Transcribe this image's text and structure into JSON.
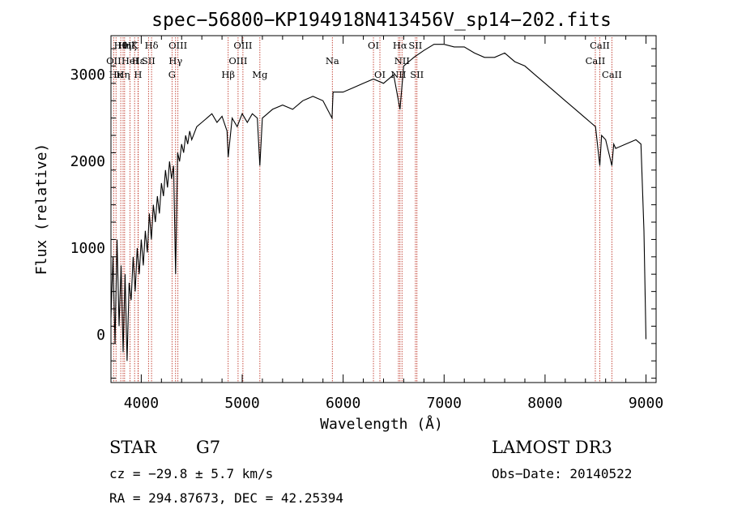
{
  "chart_data": {
    "type": "line",
    "title": "spec−56800−KP194918N413456V_sp14−202.fits",
    "xlabel": "Wavelength (Å)",
    "ylabel": "Flux (relative)",
    "xlim": [
      3700,
      9100
    ],
    "ylim": [
      -550,
      3450
    ],
    "x_ticks": [
      4000,
      5000,
      6000,
      7000,
      8000,
      9000
    ],
    "y_ticks": [
      0,
      1000,
      2000,
      3000
    ],
    "series": [
      {
        "name": "spectrum",
        "x": [
          3700,
          3720,
          3740,
          3760,
          3780,
          3800,
          3820,
          3840,
          3860,
          3880,
          3900,
          3920,
          3940,
          3960,
          3980,
          4000,
          4020,
          4040,
          4060,
          4080,
          4100,
          4120,
          4140,
          4160,
          4180,
          4200,
          4220,
          4240,
          4260,
          4280,
          4300,
          4320,
          4340,
          4360,
          4380,
          4400,
          4420,
          4440,
          4460,
          4480,
          4500,
          4550,
          4600,
          4650,
          4700,
          4750,
          4800,
          4850,
          4861,
          4900,
          4950,
          5000,
          5050,
          5100,
          5150,
          5175,
          5200,
          5250,
          5300,
          5400,
          5500,
          5600,
          5700,
          5800,
          5890,
          5900,
          6000,
          6100,
          6200,
          6300,
          6400,
          6500,
          6563,
          6600,
          6700,
          6800,
          6900,
          7000,
          7100,
          7200,
          7300,
          7400,
          7500,
          7600,
          7700,
          7800,
          7900,
          8000,
          8100,
          8200,
          8300,
          8400,
          8450,
          8500,
          8542,
          8560,
          8600,
          8662,
          8680,
          8700,
          8800,
          8900,
          8950,
          8980,
          9000
        ],
        "y": [
          200,
          900,
          -100,
          1100,
          100,
          800,
          -200,
          700,
          -300,
          600,
          400,
          900,
          500,
          1000,
          700,
          1100,
          800,
          1200,
          950,
          1400,
          1100,
          1500,
          1300,
          1600,
          1400,
          1750,
          1600,
          1900,
          1700,
          2000,
          1800,
          1950,
          700,
          2100,
          2000,
          2200,
          2100,
          2300,
          2200,
          2350,
          2250,
          2400,
          2450,
          2500,
          2550,
          2450,
          2520,
          2350,
          2050,
          2500,
          2400,
          2550,
          2450,
          2550,
          2500,
          1950,
          2500,
          2550,
          2600,
          2650,
          2600,
          2700,
          2750,
          2700,
          2500,
          2800,
          2800,
          2850,
          2900,
          2950,
          2900,
          3000,
          2600,
          3100,
          3200,
          3280,
          3350,
          3350,
          3320,
          3320,
          3250,
          3200,
          3200,
          3250,
          3150,
          3100,
          3000,
          2900,
          2800,
          2700,
          2600,
          2500,
          2450,
          2400,
          1950,
          2300,
          2250,
          1950,
          2200,
          2150,
          2200,
          2250,
          2200,
          1200,
          -50
        ]
      }
    ],
    "lines_top": [
      {
        "x": 3797,
        "label": "Hθ"
      },
      {
        "x": 3835,
        "label": "Hη"
      },
      {
        "x": 3889,
        "label": "Hζ"
      },
      {
        "x": 3934,
        "label": "K"
      },
      {
        "x": 4102,
        "label": "Hδ"
      },
      {
        "x": 4363,
        "label": "OIII"
      },
      {
        "x": 5007,
        "label": "OIII"
      },
      {
        "x": 6300,
        "label": "OI"
      },
      {
        "x": 6563,
        "label": "Hα"
      },
      {
        "x": 6716,
        "label": "SII"
      },
      {
        "x": 8542,
        "label": "CaII"
      }
    ],
    "lines_mid": [
      {
        "x": 3727,
        "label": "OII"
      },
      {
        "x": 3970,
        "label": "Hε"
      },
      {
        "x": 3889,
        "label": "HeI"
      },
      {
        "x": 4072,
        "label": "SII"
      },
      {
        "x": 4340,
        "label": "Hγ"
      },
      {
        "x": 4959,
        "label": "OIII"
      },
      {
        "x": 5893,
        "label": "Na"
      },
      {
        "x": 6583,
        "label": "NII"
      },
      {
        "x": 8498,
        "label": "CaII"
      }
    ],
    "lines_low": [
      {
        "x": 3750,
        "label": "Hκ"
      },
      {
        "x": 3820,
        "label": "Hη"
      },
      {
        "x": 3968,
        "label": "H"
      },
      {
        "x": 4305,
        "label": "G"
      },
      {
        "x": 4861,
        "label": "Hβ"
      },
      {
        "x": 5175,
        "label": "Mg"
      },
      {
        "x": 6364,
        "label": "OI"
      },
      {
        "x": 6548,
        "label": "NII"
      },
      {
        "x": 6731,
        "label": "SII"
      },
      {
        "x": 8662,
        "label": "CaII"
      }
    ]
  },
  "info": {
    "obj_class": "STAR",
    "subclass": "G7",
    "survey": "LAMOST DR3",
    "cz": "cz = −29.8 ± 5.7 km/s",
    "obs_date": "Obs−Date: 20140522",
    "coords": "RA = 294.87673, DEC =  42.25394"
  }
}
